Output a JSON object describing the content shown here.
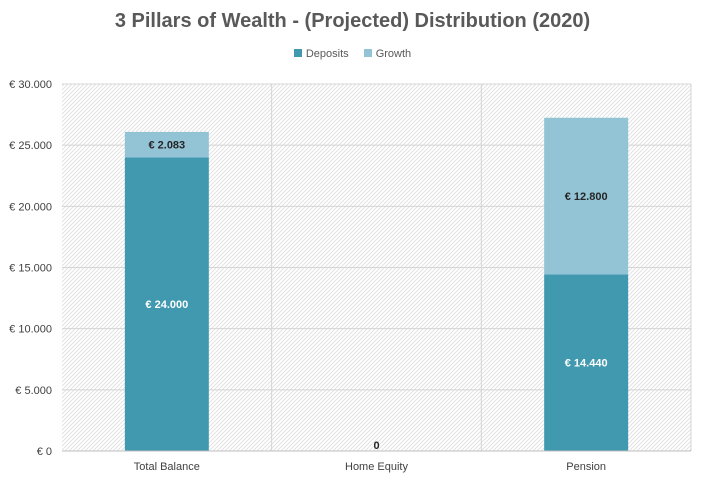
{
  "chart_data": {
    "type": "bar",
    "stacked": true,
    "title": "3 Pillars of Wealth - (Projected) Distribution  (2020)",
    "categories": [
      "Total Balance",
      "Home Equity",
      "Pension"
    ],
    "series": [
      {
        "name": "Deposits",
        "color": "#4199b0",
        "values": [
          24000,
          0,
          14440
        ],
        "labels": [
          "€ 24.000",
          "0",
          "€ 14.440"
        ]
      },
      {
        "name": "Growth",
        "color": "#93c4d6",
        "values": [
          2083,
          0,
          12800
        ],
        "labels": [
          "€ 2.083",
          "",
          "€ 12.800"
        ]
      }
    ],
    "ylim": [
      0,
      30000
    ],
    "yticks": [
      0,
      5000,
      10000,
      15000,
      20000,
      25000,
      30000
    ],
    "ytick_labels": [
      "€ 0",
      "€ 5.000",
      "€ 10.000",
      "€ 15.000",
      "€ 20.000",
      "€ 25.000",
      "€ 30.000"
    ],
    "legend_position": "top-center",
    "grid": true
  }
}
